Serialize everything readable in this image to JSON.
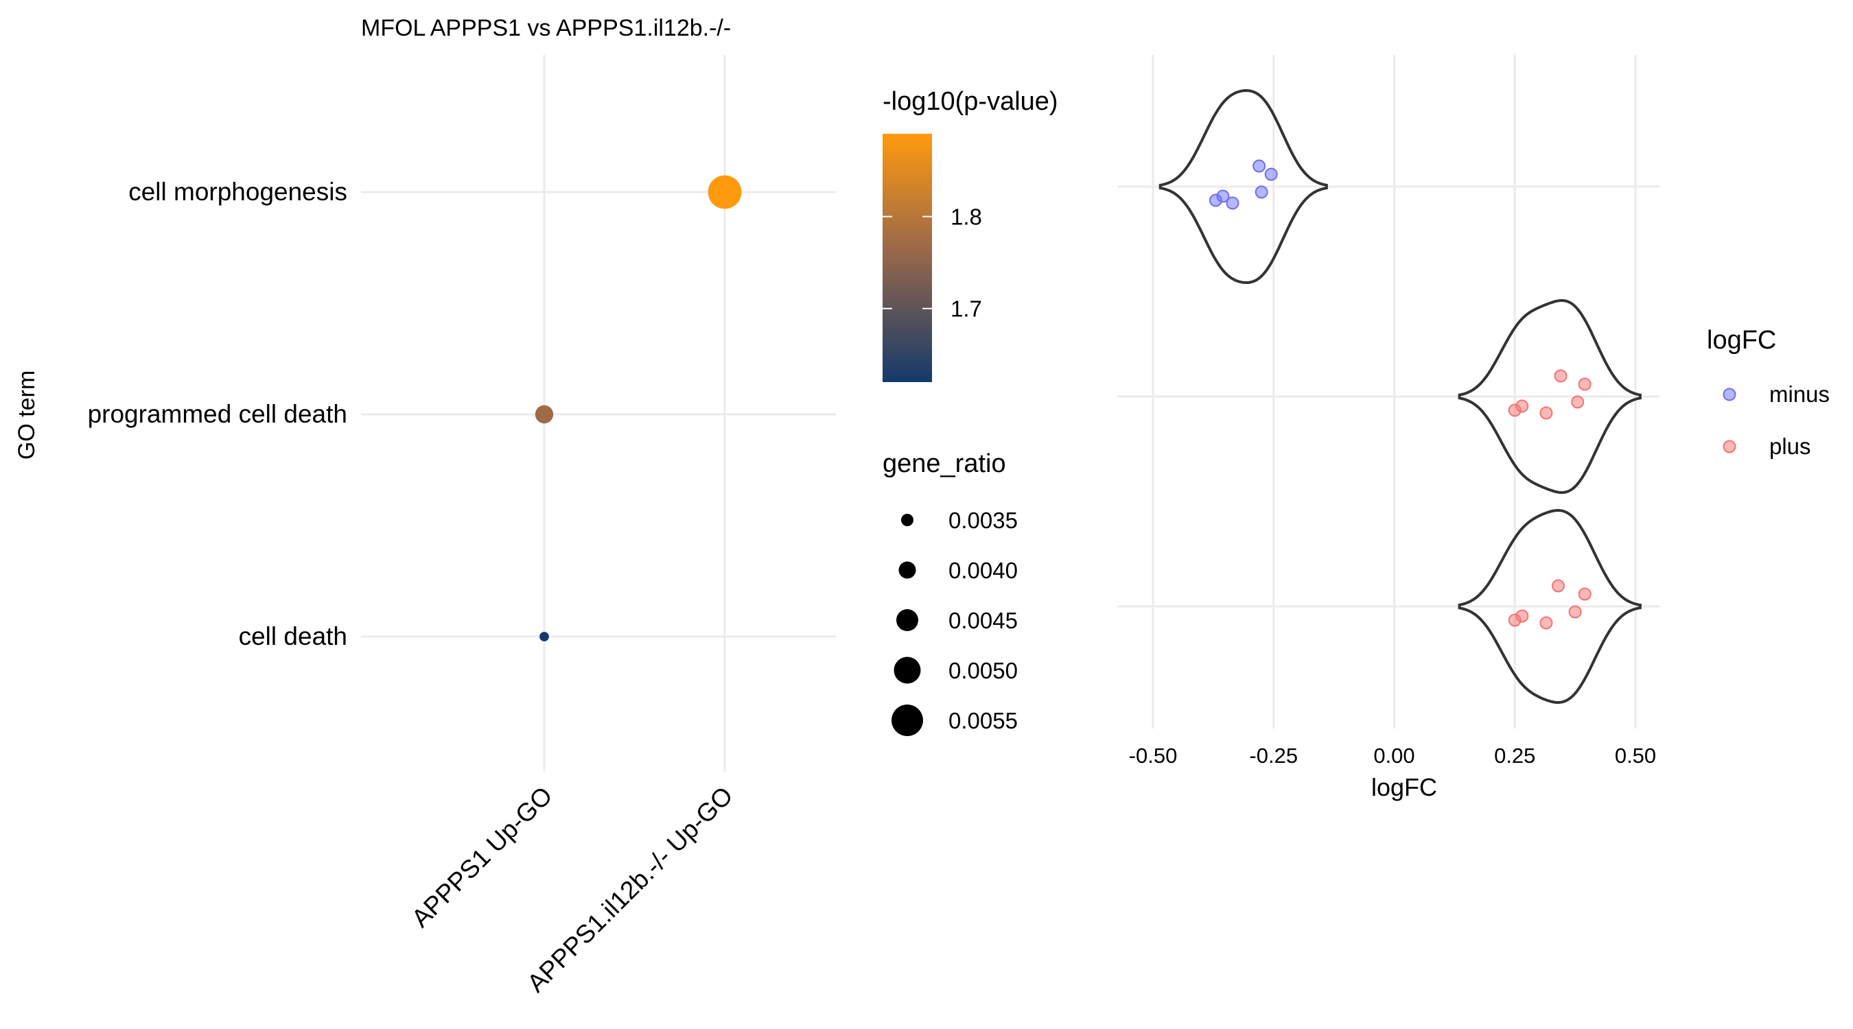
{
  "chart_data": [
    {
      "type": "scatter",
      "title": "MFOL APPPS1 vs APPPS1.il12b.-/-",
      "xlabel": "",
      "ylabel": "GO term",
      "x_categories": [
        "APPPS1 Up-GO",
        "APPPS1.il12b.-/- Up-GO"
      ],
      "y_categories": [
        "cell morphogenesis",
        "programmed cell death",
        "cell death"
      ],
      "grid": true,
      "points": [
        {
          "term": "cell morphogenesis",
          "group": "APPPS1.il12b.-/- Up-GO",
          "neg_log10_p": 1.89,
          "gene_ratio": 0.0057
        },
        {
          "term": "programmed cell death",
          "group": "APPPS1 Up-GO",
          "neg_log10_p": 1.77,
          "gene_ratio": 0.0041
        },
        {
          "term": "cell death",
          "group": "APPPS1 Up-GO",
          "neg_log10_p": 1.62,
          "gene_ratio": 0.0032
        }
      ],
      "color_legend": {
        "title": "-log10(p-value)",
        "ticks": [
          "1.7",
          "1.8"
        ],
        "tick_values": [
          1.7,
          1.8
        ],
        "range": [
          1.62,
          1.89
        ],
        "low_color": "#143a6b",
        "mid_color": "#9e6a48",
        "high_color": "#ff9a0e"
      },
      "size_legend": {
        "title": "gene_ratio",
        "labels": [
          "0.0035",
          "0.0040",
          "0.0045",
          "0.0050",
          "0.0055"
        ],
        "values": [
          0.0035,
          0.004,
          0.0045,
          0.005,
          0.0055
        ]
      }
    },
    {
      "type": "violin",
      "xlabel": "logFC",
      "ylabel": "",
      "xlim": [
        -0.5,
        0.55
      ],
      "x_ticks": [
        "-0.50",
        "-0.25",
        "0.00",
        "0.25",
        "0.50"
      ],
      "x_tick_values": [
        -0.5,
        -0.25,
        0.0,
        0.25,
        0.5
      ],
      "grid": true,
      "legend": {
        "title": "logFC",
        "position": "right",
        "entries": [
          {
            "label": "minus",
            "color": "#6e6ef5"
          },
          {
            "label": "plus",
            "color": "#f57373"
          }
        ]
      },
      "rows": [
        {
          "term": "cell morphogenesis",
          "sign": "minus",
          "values": [
            -0.37,
            -0.355,
            -0.335,
            -0.28,
            -0.275,
            -0.255
          ]
        },
        {
          "term": "programmed cell death",
          "sign": "plus",
          "values": [
            0.25,
            0.265,
            0.315,
            0.345,
            0.38,
            0.395
          ]
        },
        {
          "term": "cell death",
          "sign": "plus",
          "values": [
            0.25,
            0.265,
            0.315,
            0.34,
            0.375,
            0.395
          ]
        }
      ]
    }
  ]
}
